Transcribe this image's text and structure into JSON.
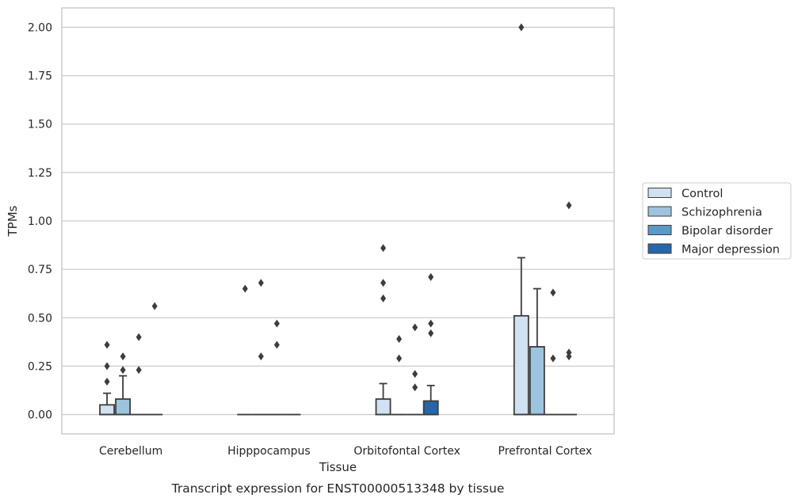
{
  "chart_data": {
    "type": "box",
    "title": "",
    "caption": "Transcript expression for ENST00000513348 by tissue",
    "xlabel": "Tissue",
    "ylabel": "TPMs",
    "ylim": [
      -0.1,
      2.1
    ],
    "yticks": [
      "0.00",
      "0.25",
      "0.50",
      "0.75",
      "1.00",
      "1.25",
      "1.50",
      "1.75",
      "2.00"
    ],
    "grid": "horizontal",
    "legend_position": "right",
    "categories": [
      "Cerebellum",
      "Hipppocampus",
      "Orbitofontal Cortex",
      "Prefrontal Cortex"
    ],
    "series": [
      {
        "name": "Control",
        "color": "#d0e1f1",
        "boxes": [
          {
            "q1": 0.0,
            "median": 0.0,
            "q3": 0.05,
            "whisker_low": 0.0,
            "whisker_high": 0.11,
            "outliers": [
              0.17,
              0.25,
              0.36
            ]
          },
          {
            "q1": 0.0,
            "median": 0.0,
            "q3": 0.0,
            "whisker_low": 0.0,
            "whisker_high": 0.0,
            "outliers": [
              0.65
            ]
          },
          {
            "q1": 0.0,
            "median": 0.0,
            "q3": 0.08,
            "whisker_low": 0.0,
            "whisker_high": 0.16,
            "outliers": [
              0.6,
              0.68,
              0.86
            ]
          },
          {
            "q1": 0.0,
            "median": 0.0,
            "q3": 0.51,
            "whisker_low": 0.0,
            "whisker_high": 0.81,
            "outliers": [
              2.0
            ]
          }
        ]
      },
      {
        "name": "Schizophrenia",
        "color": "#9cc4de",
        "boxes": [
          {
            "q1": 0.0,
            "median": 0.0,
            "q3": 0.08,
            "whisker_low": 0.0,
            "whisker_high": 0.2,
            "outliers": [
              0.23,
              0.3
            ]
          },
          {
            "q1": 0.0,
            "median": 0.0,
            "q3": 0.0,
            "whisker_low": 0.0,
            "whisker_high": 0.0,
            "outliers": [
              0.3,
              0.68
            ]
          },
          {
            "q1": 0.0,
            "median": 0.0,
            "q3": 0.0,
            "whisker_low": 0.0,
            "whisker_high": 0.0,
            "outliers": [
              0.29,
              0.39
            ]
          },
          {
            "q1": 0.0,
            "median": 0.0,
            "q3": 0.35,
            "whisker_low": 0.0,
            "whisker_high": 0.65,
            "outliers": []
          }
        ]
      },
      {
        "name": "Bipolar disorder",
        "color": "#5a9ac6",
        "boxes": [
          {
            "q1": 0.0,
            "median": 0.0,
            "q3": 0.0,
            "whisker_low": 0.0,
            "whisker_high": 0.0,
            "outliers": [
              0.23,
              0.4
            ]
          },
          {
            "q1": 0.0,
            "median": 0.0,
            "q3": 0.0,
            "whisker_low": 0.0,
            "whisker_high": 0.0,
            "outliers": [
              0.36,
              0.47
            ]
          },
          {
            "q1": 0.0,
            "median": 0.0,
            "q3": 0.0,
            "whisker_low": 0.0,
            "whisker_high": 0.0,
            "outliers": [
              0.14,
              0.21,
              0.45
            ]
          },
          {
            "q1": 0.0,
            "median": 0.0,
            "q3": 0.0,
            "whisker_low": 0.0,
            "whisker_high": 0.0,
            "outliers": [
              0.29,
              0.63
            ]
          }
        ]
      },
      {
        "name": "Major depression",
        "color": "#2767a9",
        "boxes": [
          {
            "q1": 0.0,
            "median": 0.0,
            "q3": 0.0,
            "whisker_low": 0.0,
            "whisker_high": 0.0,
            "outliers": [
              0.56
            ]
          },
          {
            "q1": 0.0,
            "median": 0.0,
            "q3": 0.0,
            "whisker_low": 0.0,
            "whisker_high": 0.0,
            "outliers": []
          },
          {
            "q1": 0.0,
            "median": 0.0,
            "q3": 0.07,
            "whisker_low": 0.0,
            "whisker_high": 0.15,
            "outliers": [
              0.42,
              0.47,
              0.71
            ]
          },
          {
            "q1": 0.0,
            "median": 0.0,
            "q3": 0.0,
            "whisker_low": 0.0,
            "whisker_high": 0.0,
            "outliers": [
              0.3,
              0.32,
              1.08
            ]
          }
        ]
      }
    ]
  }
}
